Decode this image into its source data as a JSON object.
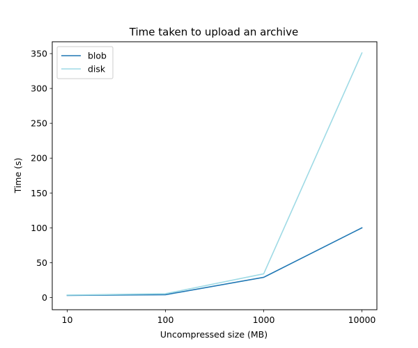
{
  "chart_data": {
    "type": "line",
    "title": "Time taken to upload an archive",
    "xlabel": "Uncompressed size (MB)",
    "ylabel": "Time (s)",
    "x_scale": "log",
    "x": [
      10,
      100,
      1000,
      10000
    ],
    "x_tick_labels": [
      "10",
      "100",
      "1000",
      "10000"
    ],
    "xlim": [
      10,
      10000
    ],
    "ylim": [
      -17.5,
      367
    ],
    "y_ticks": [
      0,
      50,
      100,
      150,
      200,
      250,
      300,
      350
    ],
    "grid": false,
    "legend": "top-left",
    "series": [
      {
        "name": "blob",
        "color": "#1f77b4",
        "values": [
          3,
          4,
          29,
          100
        ]
      },
      {
        "name": "disk",
        "color": "#9edae5",
        "values": [
          3.5,
          5.5,
          34,
          351
        ]
      }
    ]
  }
}
